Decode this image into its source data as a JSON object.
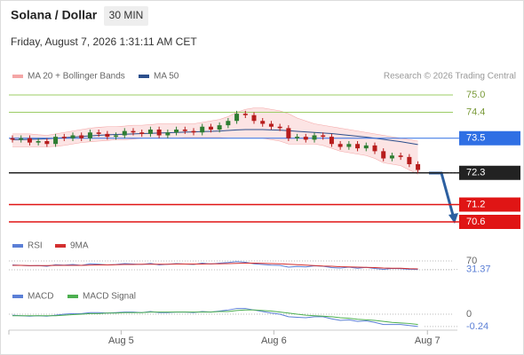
{
  "header": {
    "title": "Solana / Dollar",
    "interval": "30 MIN",
    "datetime": "Friday, August 7, 2026 1:31:11 AM CET",
    "credit": "Research © 2026 Trading Central"
  },
  "chart_data": [
    {
      "type": "candlestick",
      "xlim": [
        0,
        49
      ],
      "xticks": [
        {
          "value": 12.6,
          "label": "Aug 5"
        },
        {
          "value": 30.3,
          "label": "Aug 6"
        },
        {
          "value": 48.1,
          "label": "Aug 7"
        }
      ],
      "up_color": "#2e7d32",
      "down_color": "#b71c1c",
      "open": [
        73.5,
        73.45,
        73.5,
        73.35,
        73.4,
        73.3,
        73.55,
        73.5,
        73.6,
        73.5,
        73.7,
        73.65,
        73.55,
        73.6,
        73.75,
        73.7,
        73.65,
        73.8,
        73.6,
        73.7,
        73.8,
        73.75,
        73.7,
        73.9,
        73.8,
        73.95,
        74.1,
        74.35,
        74.3,
        74.1,
        74.0,
        73.9,
        73.85,
        73.5,
        73.55,
        73.45,
        73.6,
        73.55,
        73.3,
        73.2,
        73.3,
        73.15,
        73.25,
        73.05,
        72.8,
        72.9,
        72.85,
        72.6
      ],
      "high": [
        73.6,
        73.6,
        73.6,
        73.5,
        73.5,
        73.65,
        73.65,
        73.7,
        73.7,
        73.8,
        73.8,
        73.75,
        73.7,
        73.85,
        73.85,
        73.8,
        73.9,
        73.9,
        73.8,
        73.9,
        73.9,
        73.85,
        74.0,
        74.0,
        74.05,
        74.2,
        74.45,
        74.45,
        74.4,
        74.2,
        74.1,
        74.0,
        73.95,
        73.65,
        73.65,
        73.7,
        73.7,
        73.65,
        73.4,
        73.4,
        73.4,
        73.35,
        73.35,
        73.15,
        73.0,
        73.0,
        72.95,
        72.7
      ],
      "low": [
        73.35,
        73.35,
        73.25,
        73.25,
        73.2,
        73.2,
        73.4,
        73.4,
        73.4,
        73.4,
        73.55,
        73.45,
        73.45,
        73.5,
        73.6,
        73.55,
        73.55,
        73.5,
        73.5,
        73.6,
        73.65,
        73.6,
        73.6,
        73.7,
        73.7,
        73.85,
        74.0,
        74.2,
        74.0,
        73.9,
        73.8,
        73.75,
        73.4,
        73.4,
        73.35,
        73.35,
        73.45,
        73.2,
        73.1,
        73.1,
        73.05,
        73.05,
        72.95,
        72.7,
        72.7,
        72.75,
        72.5,
        72.3
      ],
      "close": [
        73.45,
        73.5,
        73.35,
        73.4,
        73.3,
        73.55,
        73.5,
        73.6,
        73.5,
        73.7,
        73.65,
        73.55,
        73.6,
        73.75,
        73.7,
        73.65,
        73.8,
        73.6,
        73.7,
        73.8,
        73.75,
        73.7,
        73.9,
        73.8,
        73.95,
        74.1,
        74.35,
        74.3,
        74.1,
        74.0,
        73.9,
        73.85,
        73.5,
        73.55,
        73.45,
        73.6,
        73.55,
        73.3,
        73.2,
        73.3,
        73.15,
        73.25,
        73.05,
        72.8,
        72.9,
        72.85,
        72.6,
        72.4
      ],
      "series": [
        {
          "name": "MA 20 + Bollinger Bands",
          "color": "#f4a6a6",
          "upper": [
            73.65,
            73.65,
            73.65,
            73.62,
            73.6,
            73.65,
            73.7,
            73.75,
            73.8,
            73.85,
            73.88,
            73.9,
            73.9,
            73.92,
            73.95,
            73.95,
            73.97,
            74.0,
            74.0,
            74.0,
            74.0,
            74.0,
            74.05,
            74.1,
            74.15,
            74.25,
            74.4,
            74.5,
            74.55,
            74.55,
            74.5,
            74.45,
            74.35,
            74.2,
            74.1,
            74.0,
            73.95,
            73.9,
            73.85,
            73.8,
            73.75,
            73.7,
            73.65,
            73.6,
            73.55,
            73.5,
            73.45,
            73.4
          ],
          "lower": [
            73.2,
            73.2,
            73.2,
            73.2,
            73.2,
            73.22,
            73.25,
            73.3,
            73.35,
            73.38,
            73.4,
            73.42,
            73.45,
            73.45,
            73.47,
            73.5,
            73.5,
            73.5,
            73.5,
            73.5,
            73.52,
            73.52,
            73.52,
            73.52,
            73.52,
            73.5,
            73.5,
            73.5,
            73.5,
            73.5,
            73.45,
            73.4,
            73.3,
            73.3,
            73.3,
            73.3,
            73.25,
            73.15,
            73.05,
            73.0,
            72.95,
            72.9,
            72.8,
            72.65,
            72.6,
            72.55,
            72.4,
            72.25
          ]
        },
        {
          "name": "MA 50",
          "color": "#2c4f8c",
          "values": [
            73.45,
            73.45,
            73.46,
            73.47,
            73.48,
            73.5,
            73.52,
            73.54,
            73.56,
            73.58,
            73.6,
            73.62,
            73.63,
            73.64,
            73.65,
            73.66,
            73.67,
            73.68,
            73.69,
            73.7,
            73.71,
            73.72,
            73.73,
            73.74,
            73.75,
            73.77,
            73.79,
            73.8,
            73.8,
            73.8,
            73.79,
            73.78,
            73.76,
            73.74,
            73.72,
            73.7,
            73.68,
            73.66,
            73.63,
            73.6,
            73.57,
            73.54,
            73.5,
            73.46,
            73.42,
            73.38,
            73.33,
            73.28
          ]
        }
      ],
      "levels": [
        {
          "value": 75,
          "label": "75.0",
          "color": "#9ccc65",
          "style": "text"
        },
        {
          "value": 74.4,
          "color": "#9ccc65",
          "style": "text"
        },
        {
          "value": 73.5,
          "color": "#2f6fe4",
          "style": "badge"
        },
        {
          "value": 72.3,
          "color": "#222222",
          "style": "badge"
        },
        {
          "value": 71.2,
          "color": "#e01515",
          "style": "badge"
        },
        {
          "value": 70.6,
          "color": "#e01515",
          "style": "badge"
        }
      ]
    },
    {
      "type": "line",
      "ylim": [
        0,
        100
      ],
      "yticks": [
        70,
        30
      ],
      "series": [
        {
          "name": "RSI",
          "color": "#5b7fd6",
          "values": [
            52,
            50,
            48,
            49,
            46,
            53,
            51,
            54,
            50,
            57,
            55,
            52,
            54,
            58,
            56,
            54,
            59,
            52,
            55,
            58,
            56,
            54,
            60,
            56,
            60,
            63,
            67,
            64,
            57,
            54,
            51,
            50,
            42,
            45,
            43,
            48,
            46,
            40,
            38,
            42,
            37,
            41,
            36,
            32,
            36,
            35,
            32,
            31.37
          ]
        },
        {
          "name": "9MA",
          "color": "#d32f2f",
          "values": [
            50,
            50,
            49,
            49,
            49,
            50,
            50,
            50,
            50,
            51,
            52,
            52,
            53,
            54,
            54,
            55,
            55,
            55,
            55,
            56,
            56,
            56,
            56,
            57,
            57,
            58,
            59,
            60,
            60,
            59,
            58,
            57,
            55,
            53,
            51,
            49,
            47,
            46,
            44,
            43,
            42,
            41,
            40,
            38,
            37,
            37,
            35,
            34
          ]
        }
      ]
    },
    {
      "type": "line",
      "ylim": [
        -0.31,
        0.24
      ],
      "yticks": [
        0
      ],
      "series": [
        {
          "name": "MACD",
          "color": "#5b7fd6",
          "values": [
            -0.02,
            -0.03,
            -0.04,
            -0.03,
            -0.04,
            -0.02,
            0,
            0.01,
            0.01,
            0.03,
            0.03,
            0.02,
            0.03,
            0.04,
            0.04,
            0.03,
            0.05,
            0.03,
            0.03,
            0.04,
            0.04,
            0.03,
            0.05,
            0.04,
            0.06,
            0.08,
            0.11,
            0.11,
            0.08,
            0.05,
            0.02,
            0,
            -0.05,
            -0.06,
            -0.07,
            -0.05,
            -0.05,
            -0.09,
            -0.12,
            -0.11,
            -0.14,
            -0.13,
            -0.16,
            -0.2,
            -0.2,
            -0.2,
            -0.22,
            -0.24
          ]
        },
        {
          "name": "MACD Signal",
          "color": "#4caf50",
          "values": [
            -0.03,
            -0.03,
            -0.03,
            -0.03,
            -0.03,
            -0.03,
            -0.02,
            -0.01,
            0,
            0.01,
            0.01,
            0.02,
            0.02,
            0.03,
            0.03,
            0.03,
            0.04,
            0.04,
            0.04,
            0.04,
            0.04,
            0.04,
            0.04,
            0.04,
            0.05,
            0.05,
            0.07,
            0.08,
            0.08,
            0.07,
            0.06,
            0.04,
            0.02,
            0,
            -0.02,
            -0.03,
            -0.04,
            -0.05,
            -0.07,
            -0.08,
            -0.1,
            -0.11,
            -0.12,
            -0.14,
            -0.16,
            -0.17,
            -0.18,
            -0.2
          ]
        }
      ]
    }
  ]
}
